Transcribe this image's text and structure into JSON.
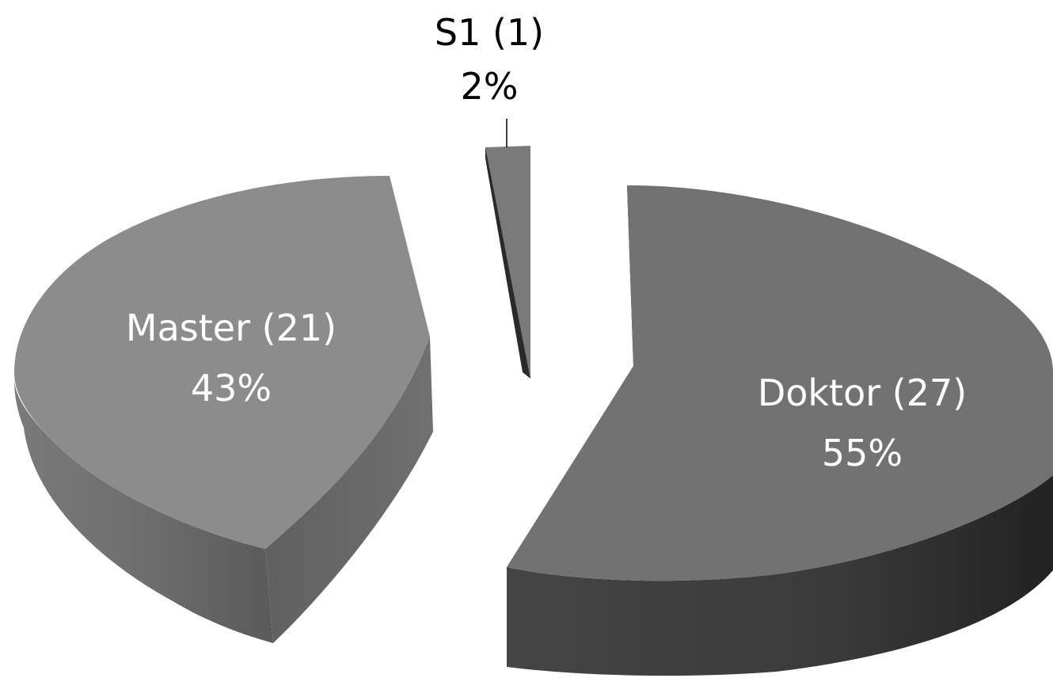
{
  "chart_data": {
    "type": "pie",
    "style": "3d-exploded",
    "legend": "none",
    "slices": [
      {
        "label": "Doktor (27)",
        "category": "Doktor",
        "count": 27,
        "percent_label": "55%",
        "value": 55,
        "color": "#727272",
        "side_color": "#3a3a3a",
        "label_color": "#ffffff"
      },
      {
        "label": "Master (21)",
        "category": "Master",
        "count": 21,
        "percent_label": "43%",
        "value": 43,
        "color": "#8c8c8c",
        "side_color": "#6a6a6a",
        "label_color": "#ffffff"
      },
      {
        "label": "S1 (1)",
        "category": "S1",
        "count": 1,
        "percent_label": "2%",
        "value": 2,
        "color": "#7a7a7a",
        "side_color": "#3e3e3e",
        "label_color": "#000000"
      }
    ]
  }
}
